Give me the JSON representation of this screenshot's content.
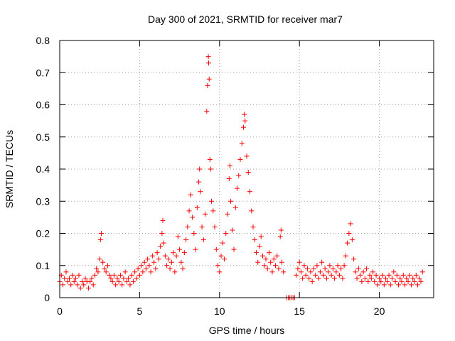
{
  "chart_data": {
    "type": "scatter",
    "title": "Day 300 of 2021, SRMTID for receiver mar7",
    "xlabel": "GPS time / hours",
    "ylabel": "SRMTID / TECUs",
    "xlim": [
      0,
      23.4
    ],
    "ylim": [
      0,
      0.8
    ],
    "xticks": [
      0,
      5,
      10,
      15,
      20
    ],
    "yticks": [
      0,
      0.1,
      0.2,
      0.3,
      0.4,
      0.5,
      0.6,
      0.7,
      0.8
    ],
    "xtick_labels": [
      "0",
      "5",
      "10",
      "15",
      "20"
    ],
    "ytick_labels": [
      "0",
      "0.1",
      "0.2",
      "0.3",
      "0.4",
      "0.5",
      "0.6",
      "0.7",
      "0.8"
    ],
    "grid": true,
    "marker": "+",
    "color": "#ff0000",
    "series": [
      {
        "name": "SRMTID",
        "points": [
          [
            0.0,
            0.05
          ],
          [
            0.1,
            0.07
          ],
          [
            0.2,
            0.04
          ],
          [
            0.3,
            0.06
          ],
          [
            0.4,
            0.08
          ],
          [
            0.5,
            0.05
          ],
          [
            0.6,
            0.06
          ],
          [
            0.7,
            0.04
          ],
          [
            0.8,
            0.07
          ],
          [
            0.9,
            0.05
          ],
          [
            1.0,
            0.06
          ],
          [
            1.1,
            0.04
          ],
          [
            1.2,
            0.07
          ],
          [
            1.3,
            0.03
          ],
          [
            1.4,
            0.05
          ],
          [
            1.5,
            0.04
          ],
          [
            1.6,
            0.06
          ],
          [
            1.7,
            0.05
          ],
          [
            1.8,
            0.03
          ],
          [
            1.9,
            0.05
          ],
          [
            2.0,
            0.06
          ],
          [
            2.1,
            0.04
          ],
          [
            2.2,
            0.07
          ],
          [
            2.3,
            0.09
          ],
          [
            2.4,
            0.08
          ],
          [
            2.5,
            0.12
          ],
          [
            2.55,
            0.18
          ],
          [
            2.6,
            0.2
          ],
          [
            2.7,
            0.11
          ],
          [
            2.8,
            0.09
          ],
          [
            2.9,
            0.08
          ],
          [
            3.0,
            0.1
          ],
          [
            3.1,
            0.07
          ],
          [
            3.2,
            0.06
          ],
          [
            3.3,
            0.05
          ],
          [
            3.4,
            0.07
          ],
          [
            3.5,
            0.04
          ],
          [
            3.6,
            0.06
          ],
          [
            3.7,
            0.05
          ],
          [
            3.8,
            0.07
          ],
          [
            3.9,
            0.04
          ],
          [
            4.0,
            0.06
          ],
          [
            4.1,
            0.08
          ],
          [
            4.2,
            0.05
          ],
          [
            4.3,
            0.06
          ],
          [
            4.4,
            0.04
          ],
          [
            4.5,
            0.07
          ],
          [
            4.6,
            0.05
          ],
          [
            4.7,
            0.08
          ],
          [
            4.8,
            0.06
          ],
          [
            4.9,
            0.09
          ],
          [
            5.0,
            0.07
          ],
          [
            5.1,
            0.1
          ],
          [
            5.2,
            0.08
          ],
          [
            5.3,
            0.11
          ],
          [
            5.4,
            0.09
          ],
          [
            5.5,
            0.12
          ],
          [
            5.6,
            0.1
          ],
          [
            5.7,
            0.08
          ],
          [
            5.8,
            0.13
          ],
          [
            5.9,
            0.11
          ],
          [
            6.0,
            0.09
          ],
          [
            6.1,
            0.14
          ],
          [
            6.2,
            0.12
          ],
          [
            6.3,
            0.16
          ],
          [
            6.4,
            0.2
          ],
          [
            6.45,
            0.24
          ],
          [
            6.5,
            0.17
          ],
          [
            6.6,
            0.13
          ],
          [
            6.7,
            0.1
          ],
          [
            6.8,
            0.12
          ],
          [
            6.9,
            0.09
          ],
          [
            7.0,
            0.11
          ],
          [
            7.1,
            0.14
          ],
          [
            7.2,
            0.08
          ],
          [
            7.3,
            0.13
          ],
          [
            7.4,
            0.19
          ],
          [
            7.5,
            0.15
          ],
          [
            7.6,
            0.11
          ],
          [
            7.7,
            0.09
          ],
          [
            7.8,
            0.14
          ],
          [
            7.9,
            0.18
          ],
          [
            8.0,
            0.22
          ],
          [
            8.1,
            0.27
          ],
          [
            8.2,
            0.32
          ],
          [
            8.3,
            0.25
          ],
          [
            8.4,
            0.2
          ],
          [
            8.5,
            0.15
          ],
          [
            8.6,
            0.28
          ],
          [
            8.7,
            0.36
          ],
          [
            8.75,
            0.4
          ],
          [
            8.8,
            0.33
          ],
          [
            8.9,
            0.22
          ],
          [
            9.0,
            0.18
          ],
          [
            9.1,
            0.26
          ],
          [
            9.2,
            0.58
          ],
          [
            9.25,
            0.66
          ],
          [
            9.3,
            0.75
          ],
          [
            9.32,
            0.73
          ],
          [
            9.35,
            0.68
          ],
          [
            9.4,
            0.43
          ],
          [
            9.45,
            0.4
          ],
          [
            9.5,
            0.3
          ],
          [
            9.6,
            0.27
          ],
          [
            9.7,
            0.22
          ],
          [
            9.8,
            0.15
          ],
          [
            9.9,
            0.1
          ],
          [
            10.0,
            0.08
          ],
          [
            10.1,
            0.13
          ],
          [
            10.2,
            0.17
          ],
          [
            10.3,
            0.12
          ],
          [
            10.4,
            0.2
          ],
          [
            10.5,
            0.26
          ],
          [
            10.6,
            0.37
          ],
          [
            10.65,
            0.41
          ],
          [
            10.7,
            0.3
          ],
          [
            10.8,
            0.21
          ],
          [
            10.9,
            0.15
          ],
          [
            11.0,
            0.28
          ],
          [
            11.1,
            0.34
          ],
          [
            11.2,
            0.38
          ],
          [
            11.3,
            0.43
          ],
          [
            11.4,
            0.48
          ],
          [
            11.5,
            0.53
          ],
          [
            11.55,
            0.57
          ],
          [
            11.6,
            0.55
          ],
          [
            11.7,
            0.44
          ],
          [
            11.8,
            0.39
          ],
          [
            11.9,
            0.33
          ],
          [
            12.0,
            0.27
          ],
          [
            12.1,
            0.22
          ],
          [
            12.2,
            0.18
          ],
          [
            12.3,
            0.14
          ],
          [
            12.4,
            0.11
          ],
          [
            12.5,
            0.16
          ],
          [
            12.6,
            0.19
          ],
          [
            12.7,
            0.13
          ],
          [
            12.8,
            0.1
          ],
          [
            12.9,
            0.12
          ],
          [
            13.0,
            0.09
          ],
          [
            13.1,
            0.14
          ],
          [
            13.2,
            0.11
          ],
          [
            13.3,
            0.08
          ],
          [
            13.4,
            0.12
          ],
          [
            13.5,
            0.1
          ],
          [
            13.6,
            0.13
          ],
          [
            13.7,
            0.09
          ],
          [
            13.8,
            0.19
          ],
          [
            13.85,
            0.21
          ],
          [
            13.9,
            0.11
          ],
          [
            14.0,
            0.08
          ],
          [
            14.2,
            0.0
          ],
          [
            14.3,
            0.0
          ],
          [
            14.4,
            0.0
          ],
          [
            14.5,
            0.0
          ],
          [
            14.6,
            0.0
          ],
          [
            14.7,
            0.0
          ],
          [
            14.8,
            0.07
          ],
          [
            14.9,
            0.09
          ],
          [
            15.0,
            0.11
          ],
          [
            15.1,
            0.08
          ],
          [
            15.2,
            0.06
          ],
          [
            15.3,
            0.1
          ],
          [
            15.4,
            0.07
          ],
          [
            15.5,
            0.09
          ],
          [
            15.6,
            0.06
          ],
          [
            15.7,
            0.08
          ],
          [
            15.8,
            0.05
          ],
          [
            15.9,
            0.09
          ],
          [
            16.0,
            0.07
          ],
          [
            16.1,
            0.1
          ],
          [
            16.2,
            0.06
          ],
          [
            16.3,
            0.08
          ],
          [
            16.4,
            0.11
          ],
          [
            16.5,
            0.07
          ],
          [
            16.6,
            0.09
          ],
          [
            16.7,
            0.06
          ],
          [
            16.8,
            0.08
          ],
          [
            16.9,
            0.1
          ],
          [
            17.0,
            0.07
          ],
          [
            17.1,
            0.09
          ],
          [
            17.2,
            0.06
          ],
          [
            17.3,
            0.08
          ],
          [
            17.4,
            0.1
          ],
          [
            17.5,
            0.07
          ],
          [
            17.6,
            0.09
          ],
          [
            17.7,
            0.06
          ],
          [
            17.8,
            0.1
          ],
          [
            17.9,
            0.13
          ],
          [
            18.0,
            0.17
          ],
          [
            18.1,
            0.2
          ],
          [
            18.2,
            0.23
          ],
          [
            18.3,
            0.18
          ],
          [
            18.4,
            0.12
          ],
          [
            18.5,
            0.08
          ],
          [
            18.6,
            0.06
          ],
          [
            18.7,
            0.09
          ],
          [
            18.8,
            0.07
          ],
          [
            18.9,
            0.05
          ],
          [
            19.0,
            0.08
          ],
          [
            19.1,
            0.06
          ],
          [
            19.2,
            0.09
          ],
          [
            19.3,
            0.05
          ],
          [
            19.4,
            0.07
          ],
          [
            19.5,
            0.06
          ],
          [
            19.6,
            0.08
          ],
          [
            19.7,
            0.05
          ],
          [
            19.8,
            0.07
          ],
          [
            19.9,
            0.04
          ],
          [
            20.0,
            0.06
          ],
          [
            20.1,
            0.05
          ],
          [
            20.2,
            0.07
          ],
          [
            20.3,
            0.04
          ],
          [
            20.4,
            0.06
          ],
          [
            20.5,
            0.05
          ],
          [
            20.6,
            0.07
          ],
          [
            20.7,
            0.04
          ],
          [
            20.8,
            0.06
          ],
          [
            20.9,
            0.08
          ],
          [
            21.0,
            0.05
          ],
          [
            21.1,
            0.07
          ],
          [
            21.2,
            0.04
          ],
          [
            21.3,
            0.06
          ],
          [
            21.4,
            0.05
          ],
          [
            21.5,
            0.07
          ],
          [
            21.6,
            0.04
          ],
          [
            21.7,
            0.06
          ],
          [
            21.8,
            0.05
          ],
          [
            21.9,
            0.07
          ],
          [
            22.0,
            0.04
          ],
          [
            22.1,
            0.06
          ],
          [
            22.2,
            0.05
          ],
          [
            22.3,
            0.07
          ],
          [
            22.4,
            0.04
          ],
          [
            22.5,
            0.06
          ],
          [
            22.6,
            0.05
          ],
          [
            22.7,
            0.08
          ]
        ]
      }
    ]
  }
}
